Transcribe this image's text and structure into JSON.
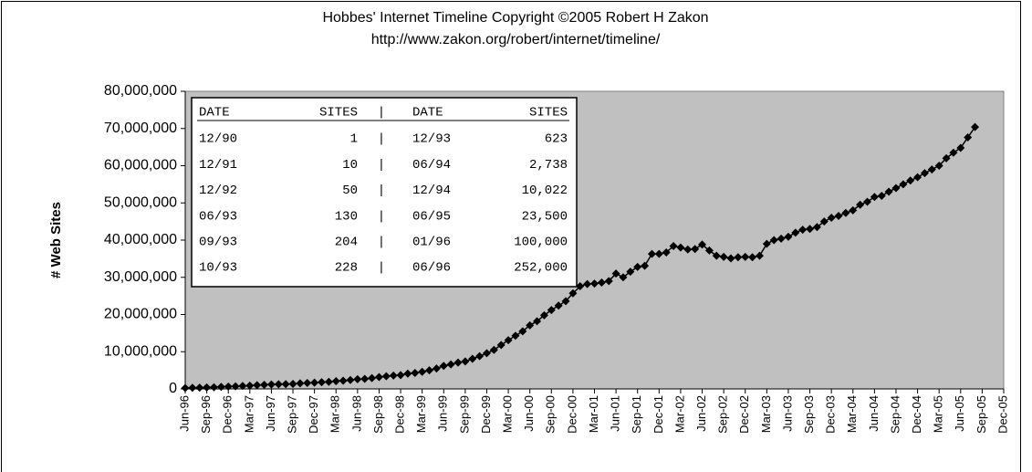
{
  "chart_data": {
    "type": "line",
    "marker": "diamond",
    "title": "Hobbes' Internet Timeline Copyright ©2005 Robert H Zakon",
    "subtitle": "http://www.zakon.org/robert/internet/timeline/",
    "y_label": "# Web Sites",
    "color": "#000000",
    "plot_background": "#c0c0c0",
    "categories": [
      "Jun-96",
      null,
      null,
      "Sep-96",
      null,
      null,
      "Dec-96",
      null,
      null,
      "Mar-97",
      null,
      null,
      "Jun-97",
      null,
      null,
      "Sep-97",
      null,
      null,
      "Dec-97",
      null,
      null,
      "Mar-98",
      null,
      null,
      "Jun-98",
      null,
      null,
      "Sep-98",
      null,
      null,
      "Dec-98",
      null,
      null,
      "Mar-99",
      null,
      null,
      "Jun-99",
      null,
      null,
      "Sep-99",
      null,
      null,
      "Dec-99",
      null,
      null,
      "Mar-00",
      null,
      null,
      "Jun-00",
      null,
      null,
      "Sep-00",
      null,
      null,
      "Dec-00",
      null,
      null,
      "Mar-01",
      null,
      null,
      "Jun-01",
      null,
      null,
      "Sep-01",
      null,
      null,
      "Dec-01",
      null,
      null,
      "Mar-02",
      null,
      null,
      "Jun-02",
      null,
      null,
      "Sep-02",
      null,
      null,
      "Dec-02",
      null,
      null,
      "Mar-03",
      null,
      null,
      "Jun-03",
      null,
      null,
      "Sep-03",
      null,
      null,
      "Dec-03",
      null,
      null,
      "Mar-04",
      null,
      null,
      "Jun-04",
      null,
      null,
      "Sep-04",
      null,
      null,
      "Dec-04",
      null,
      null,
      "Mar-05",
      null,
      null,
      "Jun-05",
      null,
      null,
      "Sep-05",
      null,
      null,
      "Dec-05"
    ],
    "values": [
      250000,
      300000,
      340000,
      400000,
      460000,
      550000,
      650000,
      700000,
      800000,
      900000,
      1000000,
      1100000,
      1200000,
      1250000,
      1300000,
      1350000,
      1500000,
      1600000,
      1700000,
      1800000,
      1900000,
      2100000,
      2200000,
      2400000,
      2600000,
      2700000,
      2900000,
      3200000,
      3400000,
      3600000,
      3700000,
      4100000,
      4300000,
      4600000,
      5000000,
      5500000,
      6200000,
      6600000,
      7100000,
      7400000,
      8100000,
      8800000,
      9600000,
      10500000,
      11800000,
      13100000,
      14300000,
      15500000,
      17100000,
      18200000,
      19800000,
      21200000,
      22400000,
      23600000,
      25700000,
      27600000,
      28200000,
      28300000,
      28600000,
      29000000,
      31000000,
      30000000,
      31500000,
      32800000,
      33100000,
      36300000,
      36300000,
      36700000,
      38400000,
      38000000,
      37500000,
      37600000,
      38800000,
      37200000,
      35800000,
      35500000,
      35100000,
      35400000,
      35500000,
      35400000,
      35800000,
      39000000,
      40000000,
      40400000,
      40900000,
      42000000,
      42800000,
      43000000,
      43500000,
      45000000,
      46000000,
      46500000,
      47300000,
      48000000,
      49500000,
      50300000,
      51600000,
      51900000,
      53000000,
      54000000,
      55000000,
      56000000,
      56900000,
      58000000,
      59000000,
      60000000,
      62000000,
      63500000,
      64800000,
      67600000,
      70400000,
      null,
      null,
      null,
      null
    ],
    "ylim": [
      0,
      80000000
    ],
    "yticks": [
      0,
      {
        "value": 10000000,
        "label": "10,000,000"
      },
      {
        "value": 20000000,
        "label": "20,000,000"
      },
      {
        "value": 30000000,
        "label": "30,000,000"
      },
      {
        "value": 40000000,
        "label": "40,000,000"
      },
      {
        "value": 50000000,
        "label": "50,000,000"
      },
      {
        "value": 60000000,
        "label": "60,000,000"
      },
      {
        "value": 70000000,
        "label": "70,000,000"
      },
      {
        "value": 80000000,
        "label": "80,000,000"
      }
    ],
    "grid": false,
    "inset_table": {
      "header": [
        "DATE",
        "SITES",
        "|",
        "DATE",
        "SITES"
      ],
      "rows": [
        [
          "12/90",
          "1",
          "|",
          "12/93",
          "623"
        ],
        [
          "12/91",
          "10",
          "|",
          "06/94",
          "2,738"
        ],
        [
          "12/92",
          "50",
          "|",
          "12/94",
          "10,022"
        ],
        [
          "06/93",
          "130",
          "|",
          "06/95",
          "23,500"
        ],
        [
          "09/93",
          "204",
          "|",
          "01/96",
          "100,000"
        ],
        [
          "10/93",
          "228",
          "|",
          "06/96",
          "252,000"
        ]
      ]
    }
  }
}
